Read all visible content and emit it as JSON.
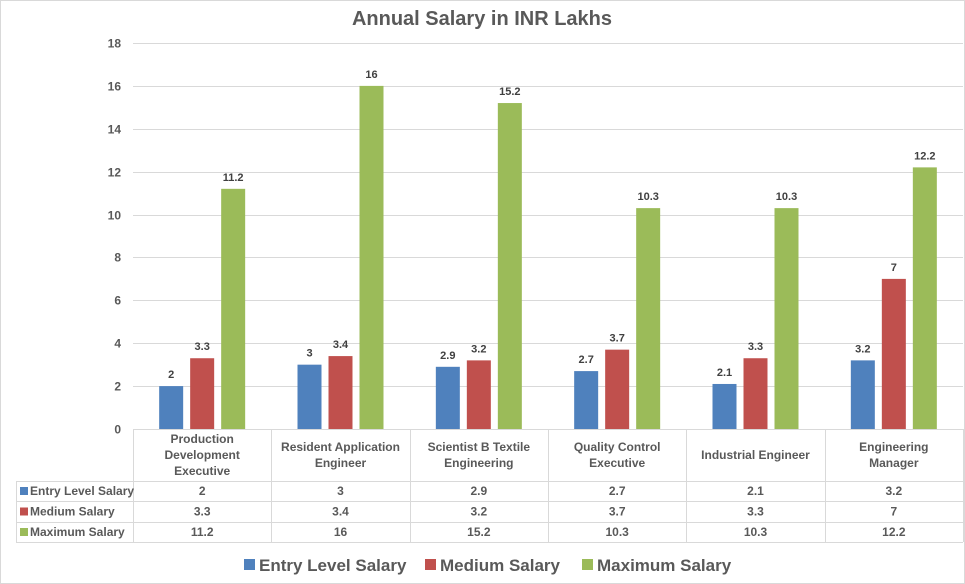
{
  "chart_data": {
    "type": "bar",
    "title": "Annual Salary in INR Lakhs",
    "xlabel": "",
    "ylabel": "",
    "ylim": [
      0,
      18
    ],
    "yticks": [
      0,
      2,
      4,
      6,
      8,
      10,
      12,
      14,
      16,
      18
    ],
    "grid": true,
    "legend_position": "bottom",
    "data_table": true,
    "categories": [
      "Production Development Executive",
      "Resident Application Engineer",
      "Scientist B Textile Engineering",
      "Quality Control Executive",
      "Industrial Engineer",
      "Engineering Manager"
    ],
    "category_lines": [
      [
        "Production",
        "Development",
        "Executive"
      ],
      [
        "Resident Application",
        "Engineer"
      ],
      [
        "Scientist B Textile",
        "Engineering"
      ],
      [
        "Quality Control",
        "Executive"
      ],
      [
        "Industrial Engineer"
      ],
      [
        "Engineering",
        "Manager"
      ]
    ],
    "series": [
      {
        "name": "Entry Level Salary",
        "color": "#4f81bd",
        "values": [
          2,
          3,
          2.9,
          2.7,
          2.1,
          3.2
        ]
      },
      {
        "name": "Medium Salary",
        "color": "#c0504d",
        "values": [
          3.3,
          3.4,
          3.2,
          3.7,
          3.3,
          7
        ]
      },
      {
        "name": "Maximum Salary",
        "color": "#9bbb59",
        "values": [
          11.2,
          16,
          15.2,
          10.3,
          10.3,
          12.2
        ]
      }
    ]
  }
}
